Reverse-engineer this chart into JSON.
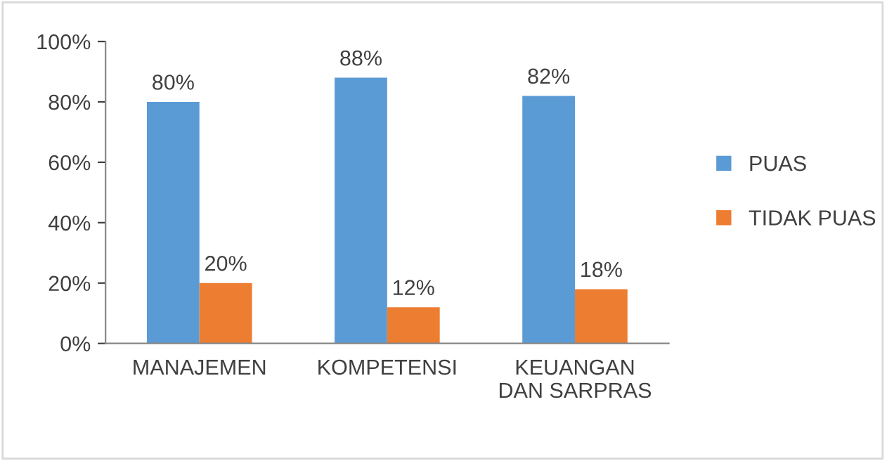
{
  "chart_data": {
    "type": "bar",
    "categories": [
      "MANAJEMEN",
      "KOMPETENSI",
      "KEUANGAN\nDAN SARPRAS"
    ],
    "series": [
      {
        "name": "PUAS",
        "color": "#5b9bd5",
        "values": [
          80,
          88,
          82
        ],
        "value_labels": [
          "80%",
          "88%",
          "82%"
        ]
      },
      {
        "name": "TIDAK PUAS",
        "color": "#ed7d31",
        "values": [
          20,
          12,
          18
        ],
        "value_labels": [
          "20%",
          "12%",
          "18%"
        ]
      }
    ],
    "ylim": [
      0,
      100
    ],
    "yticks": [
      {
        "value": 0,
        "label": "0%"
      },
      {
        "value": 20,
        "label": "20%"
      },
      {
        "value": 40,
        "label": "40%"
      },
      {
        "value": 60,
        "label": "60%"
      },
      {
        "value": 80,
        "label": "80%"
      },
      {
        "value": 100,
        "label": "100%"
      }
    ],
    "grid": false,
    "legend": "right"
  }
}
